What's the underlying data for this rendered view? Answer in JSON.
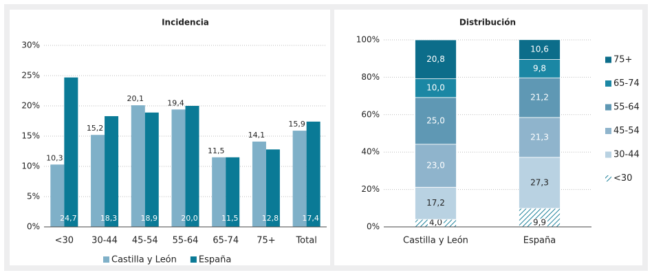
{
  "chart_data": [
    {
      "type": "bar",
      "title": "Incidencia",
      "categories": [
        "<30",
        "30-44",
        "45-54",
        "55-64",
        "65-74",
        "75+",
        "Total"
      ],
      "series": [
        {
          "name": "Castilla y León",
          "color": "#7fb0c8",
          "values": [
            10.3,
            15.2,
            20.1,
            19.4,
            11.5,
            14.1,
            15.9
          ],
          "value_labels": [
            "10,3",
            "15,2",
            "20,1",
            "19,4",
            "11,5",
            "14,1",
            "15,9"
          ]
        },
        {
          "name": "España",
          "color": "#0a7a96",
          "values": [
            24.7,
            18.3,
            18.9,
            20.0,
            11.5,
            12.8,
            17.4
          ],
          "value_labels": [
            "24,7",
            "18,3",
            "18,9",
            "20,0",
            "11,5",
            "12,8",
            "17,4"
          ]
        }
      ],
      "ylim": [
        0,
        30
      ],
      "yticks": [
        {
          "value": 0,
          "label": "0%"
        },
        {
          "value": 5,
          "label": "5%"
        },
        {
          "value": 10,
          "label": "10%"
        },
        {
          "value": 15,
          "label": "15%"
        },
        {
          "value": 20,
          "label": "20%"
        },
        {
          "value": 25,
          "label": "25%"
        },
        {
          "value": 30,
          "label": "30%"
        }
      ],
      "grid": true,
      "legend": "bottom"
    },
    {
      "type": "stacked-bar",
      "title": "Distribución",
      "categories": [
        "Castilla y León",
        "España"
      ],
      "series": [
        {
          "name": "<30",
          "color": "#1a7f99",
          "hatch": true,
          "values": [
            4.0,
            9.9
          ],
          "value_labels": [
            "4,0",
            "9,9"
          ]
        },
        {
          "name": "30-44",
          "color": "#b9d2e2",
          "values": [
            17.2,
            27.3
          ],
          "value_labels": [
            "17,2",
            "27,3"
          ]
        },
        {
          "name": "45-54",
          "color": "#8fb4cc",
          "values": [
            23.0,
            21.3
          ],
          "value_labels": [
            "23,0",
            "21,3"
          ]
        },
        {
          "name": "55-64",
          "color": "#5f98b4",
          "values": [
            25.0,
            21.2
          ],
          "value_labels": [
            "25,0",
            "21,2"
          ]
        },
        {
          "name": "65-74",
          "color": "#1b87a4",
          "values": [
            10.0,
            9.8
          ],
          "value_labels": [
            "10,0",
            "9,8"
          ]
        },
        {
          "name": "75+",
          "color": "#0c6d8a",
          "values": [
            20.8,
            10.6
          ],
          "value_labels": [
            "20,8",
            "10,6"
          ]
        }
      ],
      "ylim": [
        0,
        100
      ],
      "yticks": [
        {
          "value": 0,
          "label": "0%"
        },
        {
          "value": 20,
          "label": "20%"
        },
        {
          "value": 40,
          "label": "40%"
        },
        {
          "value": 60,
          "label": "60%"
        },
        {
          "value": 80,
          "label": "80%"
        },
        {
          "value": 100,
          "label": "100%"
        }
      ],
      "grid": true,
      "legend": "right"
    }
  ]
}
